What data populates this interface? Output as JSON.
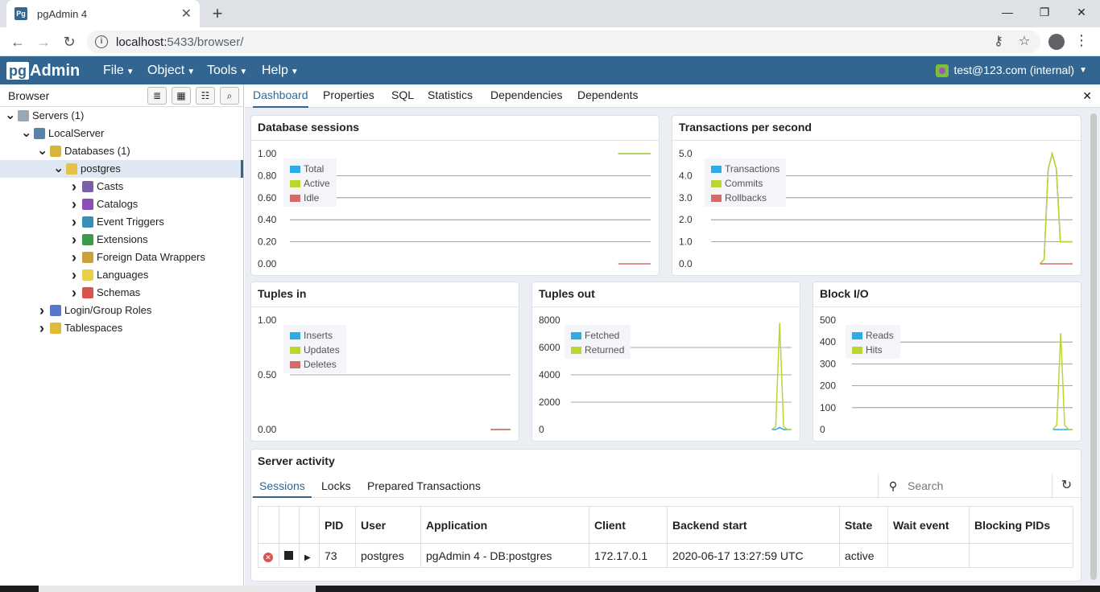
{
  "browser": {
    "tab_title": "pgAdmin 4",
    "favicon_text": "Pg",
    "url_host": "localhost:",
    "url_rest": "5433/browser/"
  },
  "navbar": {
    "logo_pg": "pg",
    "logo_admin": "Admin",
    "menus": [
      "File",
      "Object",
      "Tools",
      "Help"
    ],
    "user": "test@123.com (internal)"
  },
  "left_panel": {
    "title": "Browser",
    "tree": [
      {
        "label": "Servers (1)",
        "level": 0,
        "expanded": true,
        "icon": "servers-icon"
      },
      {
        "label": "LocalServer",
        "level": 1,
        "expanded": true,
        "icon": "elephant-icon"
      },
      {
        "label": "Databases (1)",
        "level": 2,
        "expanded": true,
        "icon": "databases-icon"
      },
      {
        "label": "postgres",
        "level": 3,
        "expanded": true,
        "icon": "database-icon",
        "selected": true
      },
      {
        "label": "Casts",
        "level": 4,
        "expanded": false,
        "icon": "cast-icon"
      },
      {
        "label": "Catalogs",
        "level": 4,
        "expanded": false,
        "icon": "catalog-icon"
      },
      {
        "label": "Event Triggers",
        "level": 4,
        "expanded": false,
        "icon": "event-trigger-icon"
      },
      {
        "label": "Extensions",
        "level": 4,
        "expanded": false,
        "icon": "extension-icon"
      },
      {
        "label": "Foreign Data Wrappers",
        "level": 4,
        "expanded": false,
        "icon": "fdw-icon"
      },
      {
        "label": "Languages",
        "level": 4,
        "expanded": false,
        "icon": "language-icon"
      },
      {
        "label": "Schemas",
        "level": 4,
        "expanded": false,
        "icon": "schema-icon"
      },
      {
        "label": "Login/Group Roles",
        "level": 2,
        "expanded": false,
        "icon": "roles-icon"
      },
      {
        "label": "Tablespaces",
        "level": 2,
        "expanded": false,
        "icon": "tablespace-icon"
      }
    ]
  },
  "tabs": [
    "Dashboard",
    "Properties",
    "SQL",
    "Statistics",
    "Dependencies",
    "Dependents"
  ],
  "colors": {
    "blue": "#2eabe6",
    "green": "#bed52e",
    "red": "#d46b6b",
    "accent": "#326690"
  },
  "chart_data": [
    {
      "type": "line",
      "title": "Database sessions",
      "ylim": [
        0,
        1
      ],
      "yticks": [
        "1.00",
        "0.80",
        "0.60",
        "0.40",
        "0.20",
        "0.00"
      ],
      "series": [
        {
          "name": "Total",
          "values": [
            1,
            1,
            1
          ]
        },
        {
          "name": "Active",
          "values": [
            1,
            1,
            1
          ]
        },
        {
          "name": "Idle",
          "values": [
            0,
            0,
            0
          ]
        }
      ]
    },
    {
      "type": "line",
      "title": "Transactions per second",
      "ylim": [
        0,
        5
      ],
      "yticks": [
        "5.0",
        "4.0",
        "3.0",
        "2.0",
        "1.0",
        "0.0"
      ],
      "series": [
        {
          "name": "Transactions",
          "values": [
            0,
            0.2,
            4.3,
            5.0,
            4.3,
            1.0,
            1.0,
            1.0,
            1.0
          ]
        },
        {
          "name": "Commits",
          "values": [
            0,
            0.2,
            4.3,
            5.0,
            4.3,
            1.0,
            1.0,
            1.0,
            1.0
          ]
        },
        {
          "name": "Rollbacks",
          "values": [
            0,
            0,
            0,
            0,
            0,
            0,
            0,
            0,
            0
          ]
        }
      ]
    },
    {
      "type": "line",
      "title": "Tuples in",
      "ylim": [
        0,
        1
      ],
      "yticks": [
        "1.00",
        "0.50",
        "0.00"
      ],
      "series": [
        {
          "name": "Inserts",
          "values": [
            0,
            0,
            0
          ]
        },
        {
          "name": "Updates",
          "values": [
            0,
            0,
            0
          ]
        },
        {
          "name": "Deletes",
          "values": [
            0,
            0,
            0
          ]
        }
      ]
    },
    {
      "type": "line",
      "title": "Tuples out",
      "ylim": [
        0,
        8000
      ],
      "yticks": [
        "8000",
        "6000",
        "4000",
        "2000",
        "0"
      ],
      "series": [
        {
          "name": "Fetched",
          "values": [
            0,
            0,
            150,
            0,
            0,
            0
          ]
        },
        {
          "name": "Returned",
          "values": [
            0,
            200,
            7800,
            200,
            0,
            0
          ]
        }
      ]
    },
    {
      "type": "line",
      "title": "Block I/O",
      "ylim": [
        0,
        500
      ],
      "yticks": [
        "500",
        "400",
        "300",
        "200",
        "100",
        "0"
      ],
      "series": [
        {
          "name": "Reads",
          "values": [
            0,
            0,
            0,
            0,
            0,
            0
          ]
        },
        {
          "name": "Hits",
          "values": [
            0,
            20,
            440,
            20,
            0,
            0
          ]
        }
      ]
    }
  ],
  "server_activity": {
    "title": "Server activity",
    "tabs": [
      "Sessions",
      "Locks",
      "Prepared Transactions"
    ],
    "search_placeholder": "Search",
    "columns": [
      "PID",
      "User",
      "Application",
      "Client",
      "Backend start",
      "State",
      "Wait event",
      "Blocking PIDs"
    ],
    "rows": [
      {
        "pid": "73",
        "user": "postgres",
        "application": "pgAdmin 4 - DB:postgres",
        "client": "172.17.0.1",
        "backend_start": "2020-06-17 13:27:59 UTC",
        "state": "active",
        "wait_event": "",
        "blocking_pids": ""
      }
    ]
  }
}
